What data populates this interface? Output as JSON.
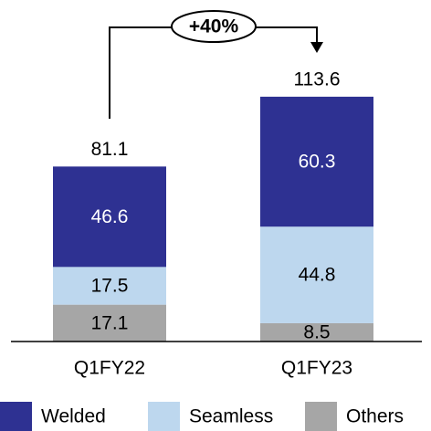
{
  "chart_data": {
    "type": "stacked_bar",
    "categories": [
      "Q1FY22",
      "Q1FY23"
    ],
    "series": [
      {
        "name": "Welded",
        "color": "#2e3192",
        "values": [
          46.6,
          60.3
        ]
      },
      {
        "name": "Seamless",
        "color": "#bdd7ee",
        "values": [
          17.5,
          44.8
        ]
      },
      {
        "name": "Others",
        "color": "#a6a6a6",
        "values": [
          17.1,
          8.5
        ]
      }
    ],
    "totals": [
      81.1,
      113.6
    ],
    "annotation": "+40%"
  }
}
